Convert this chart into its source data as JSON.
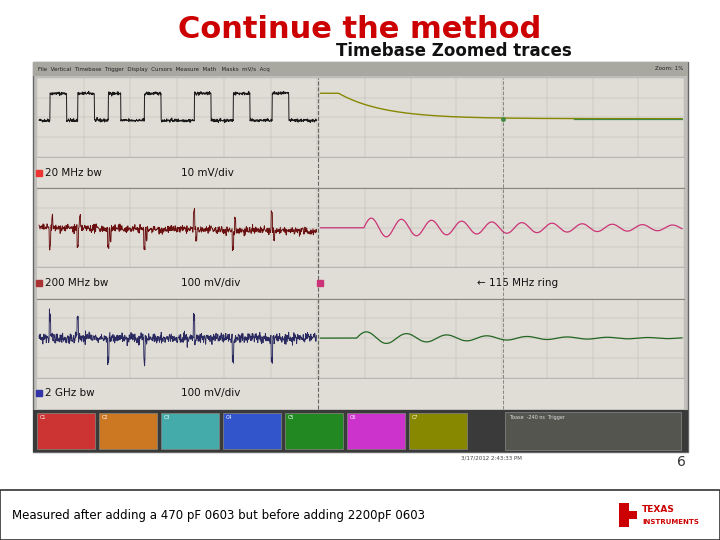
{
  "title": "Continue the method",
  "subtitle": "Timebase Zoomed traces",
  "title_color": "#cc0000",
  "title_fontsize": 22,
  "subtitle_fontsize": 12,
  "bg_color": "#ffffff",
  "screen_bg": "#dcdcd8",
  "grid_color": "#b0b0a8",
  "label_rows": [
    {
      "bw": "20 MHz bw",
      "vdiv": "10 mV/div"
    },
    {
      "bw": "200 MHz bw",
      "vdiv": "100 mV/div"
    },
    {
      "bw": "2 GHz bw",
      "vdiv": "100 mV/div"
    }
  ],
  "ring_label": "← 115 MHz ring",
  "footer_text": "Measured after adding a 470 pF 0603 but before adding 2200pF 0603",
  "page_num": "6",
  "status_colors": [
    "#cc3333",
    "#cc7722",
    "#44aaaa",
    "#3355cc",
    "#228822",
    "#cc33cc",
    "#888800",
    "#226688"
  ],
  "menu_text": "File  Vertical  Timebase  Trigger  Display  Cursors  Measure  Math   Masks  mV/s  Acq",
  "zoom_text": "Zoom: 1%"
}
